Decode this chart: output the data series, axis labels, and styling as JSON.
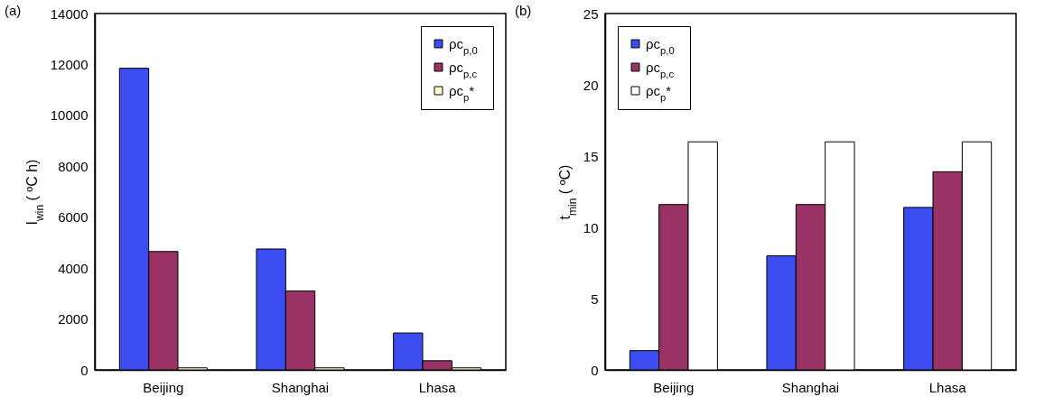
{
  "chart_data": [
    {
      "type": "bar",
      "title": "(a)",
      "ylabel": "I$_{win}$ ( ºC h)",
      "categories": [
        "Beijing",
        "Shanghai",
        "Lhasa"
      ],
      "ylim": [
        0,
        14000
      ],
      "yticks": [
        0,
        2000,
        4000,
        6000,
        8000,
        10000,
        12000,
        14000
      ],
      "legend": "top right",
      "series": [
        {
          "name": "ρc$_{p,0}$",
          "color": "#3b4cf0",
          "values": [
            11850,
            4750,
            1450
          ]
        },
        {
          "name": "ρc$_{p,c}$",
          "color": "#993366",
          "values": [
            4650,
            3100,
            360
          ]
        },
        {
          "name": "ρc$_{p}$*",
          "color": "#ffffcc",
          "values": [
            80,
            80,
            80
          ]
        }
      ]
    },
    {
      "type": "bar",
      "title": "(b)",
      "ylabel": "t$_{min}$ ( ºC)",
      "categories": [
        "Beijing",
        "Shanghai",
        "Lhasa"
      ],
      "ylim": [
        0,
        25
      ],
      "yticks": [
        0,
        5,
        10,
        15,
        20,
        25
      ],
      "legend": "top left",
      "series": [
        {
          "name": "ρc$_{p,0}$",
          "color": "#3b4cf0",
          "values": [
            1.35,
            8.0,
            11.4
          ]
        },
        {
          "name": "ρc$_{p,c}$",
          "color": "#993366",
          "values": [
            11.6,
            11.6,
            13.9
          ]
        },
        {
          "name": "ρc$_{p}$*",
          "color": "#ffffff",
          "values": [
            16.0,
            16.0,
            16.0
          ]
        }
      ]
    }
  ]
}
